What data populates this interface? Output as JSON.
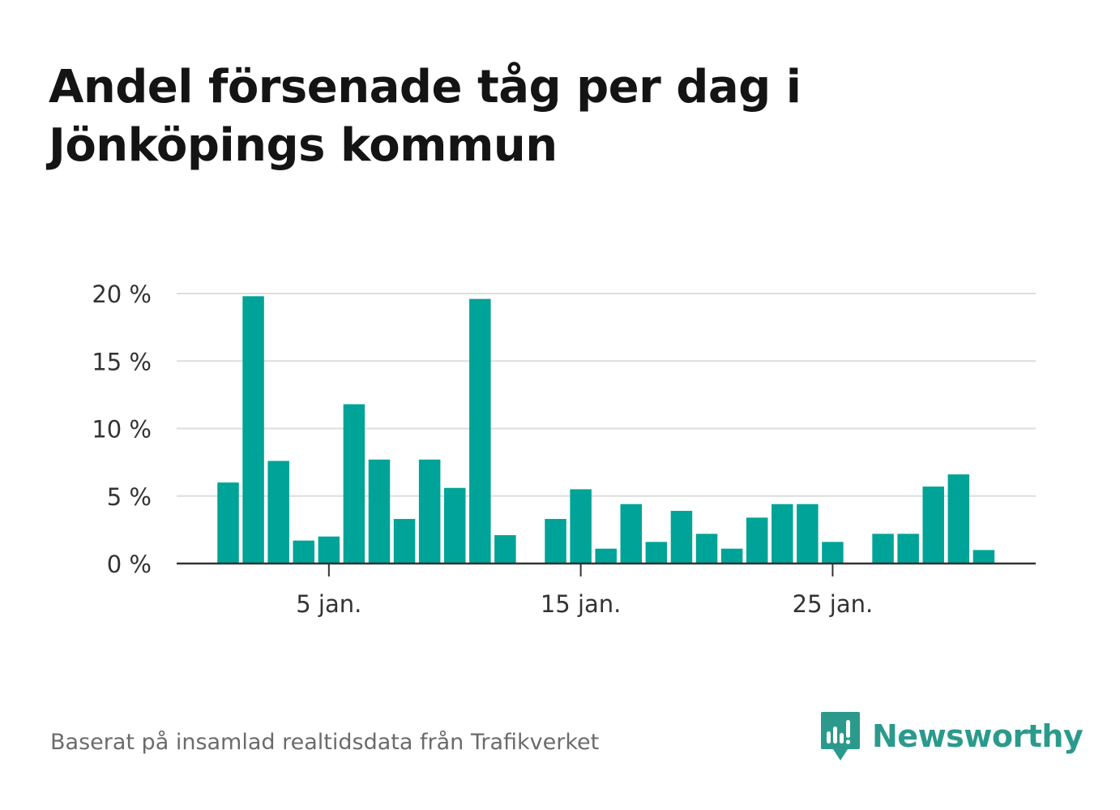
{
  "title_line1": "Andel försenade tåg per dag i",
  "title_line2": "Jönköpings kommun",
  "footer": "Baserat på insamlad realtidsdata från Trafikverket",
  "brand": "Newsworthy",
  "colors": {
    "bar": "#00a397",
    "grid": "#dddddd",
    "axis": "#333333",
    "brand": "#2b9a8c"
  },
  "chart_data": {
    "type": "bar",
    "x": [
      1,
      2,
      3,
      4,
      5,
      6,
      7,
      8,
      9,
      10,
      11,
      12,
      13,
      14,
      15,
      16,
      17,
      18,
      19,
      20,
      21,
      22,
      23,
      24,
      25,
      26,
      27,
      28,
      29,
      30,
      31
    ],
    "values": [
      6.0,
      19.8,
      7.6,
      1.7,
      2.0,
      11.8,
      7.7,
      3.3,
      7.7,
      5.6,
      19.6,
      2.1,
      0,
      3.3,
      5.5,
      1.1,
      4.4,
      1.6,
      3.9,
      2.2,
      1.1,
      3.4,
      4.4,
      4.4,
      1.6,
      0,
      2.2,
      2.2,
      5.7,
      6.6,
      1.0
    ],
    "xticks": [
      {
        "value": 5,
        "label": "5 jan."
      },
      {
        "value": 15,
        "label": "15 jan."
      },
      {
        "value": 25,
        "label": "25 jan."
      }
    ],
    "yticks": [
      {
        "value": 0,
        "label": "0 %"
      },
      {
        "value": 5,
        "label": "5 %"
      },
      {
        "value": 10,
        "label": "10 %"
      },
      {
        "value": 15,
        "label": "15 %"
      },
      {
        "value": 20,
        "label": "20 %"
      }
    ],
    "ylim": [
      0,
      20
    ],
    "grid": true
  }
}
